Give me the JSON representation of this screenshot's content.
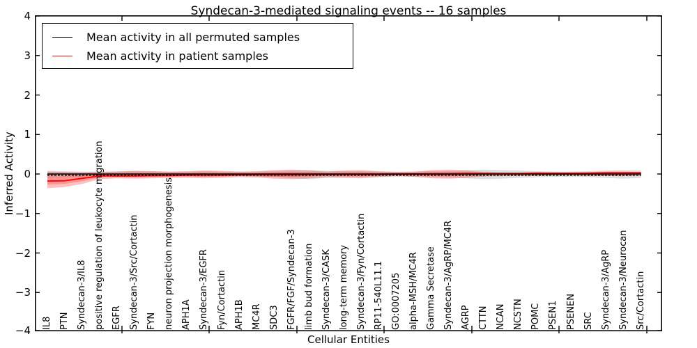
{
  "title": "Syndecan-3-mediated signaling events -- 16 samples",
  "legend": {
    "permuted_label": "Mean activity in all permuted samples",
    "patient_label": "Mean activity in patient samples"
  },
  "axes": {
    "x_label": "Cellular Entities",
    "y_label": "Inferred Activity",
    "y_tick_values": [
      4,
      3,
      2,
      1,
      0,
      -1,
      -2,
      -3,
      -4
    ],
    "y_tick_labels": [
      "4",
      "3",
      "2",
      "1",
      "0",
      "−1",
      "−2",
      "−3",
      "−4"
    ],
    "ylim": [
      -4,
      4
    ]
  },
  "colors": {
    "permuted_line": "#000000",
    "patient_line": "#ff0000",
    "permuted_band": "rgba(0,0,0,0.13)",
    "permuted_band_inner": "rgba(0,0,0,0.08)",
    "patient_band": "rgba(255,0,0,0.25)",
    "patient_band_inner": "rgba(255,0,0,0.22)",
    "axis": "#000000"
  },
  "chart_data": {
    "type": "line",
    "title": "Syndecan-3-mediated signaling events -- 16 samples",
    "xlabel": "Cellular Entities",
    "ylabel": "Inferred Activity",
    "ylim": [
      -4,
      4
    ],
    "grid": false,
    "legend_position": "upper left",
    "categories": [
      "IL8",
      "PTN",
      "Syndecan-3/IL8",
      "positive regulation of leukocyte migration",
      "EGFR",
      "Syndecan-3/Src/Cortactin",
      "FYN",
      "neuron projection morphogenesis",
      "APH1A",
      "Syndecan-3/EGFR",
      "Fyn/Cortactin",
      "APH1B",
      "MC4R",
      "SDC3",
      "FGFR/FGF/Syndecan-3",
      "limb bud formation",
      "Syndecan-3/CASK",
      "long-term memory",
      "Syndecan-3/Fyn/Cortactin",
      "RP11-540L11.1",
      "GO:0007205",
      "alpha-MSH/MC4R",
      "Gamma Secretase",
      "Syndecan-3/AgRP/MC4R",
      "AGRP",
      "CTTN",
      "NCAN",
      "NCSTN",
      "POMC",
      "PSEN1",
      "PSENEN",
      "SRC",
      "Syndecan-3/AgRP",
      "Syndecan-3/Neurocan",
      "Src/Cortactin"
    ],
    "series": [
      {
        "name": "Mean activity in all permuted samples",
        "color": "#000000",
        "style": "solid-with-dashed-overlay",
        "values": [
          0,
          0,
          0,
          0,
          0,
          0,
          0,
          0,
          0,
          0,
          0,
          0,
          0,
          0,
          0,
          0,
          0,
          0,
          0,
          0,
          0,
          0,
          0,
          0,
          0,
          0,
          0,
          0,
          0,
          0,
          0,
          0,
          0,
          0,
          0
        ],
        "band_upper": [
          0.08,
          0.07,
          0.06,
          0.06,
          0.07,
          0.08,
          0.07,
          0.06,
          0.06,
          0.07,
          0.06,
          0.06,
          0.06,
          0.07,
          0.09,
          0.1,
          0.08,
          0.07,
          0.07,
          0.06,
          0.06,
          0.06,
          0.07,
          0.08,
          0.1,
          0.11,
          0.1,
          0.09,
          0.07,
          0.06,
          0.06,
          0.07,
          0.09,
          0.1,
          0.09
        ],
        "band_lower": [
          -0.09,
          -0.08,
          -0.07,
          -0.06,
          -0.07,
          -0.08,
          -0.07,
          -0.06,
          -0.06,
          -0.07,
          -0.06,
          -0.06,
          -0.07,
          -0.08,
          -0.11,
          -0.13,
          -0.1,
          -0.08,
          -0.08,
          -0.07,
          -0.06,
          -0.07,
          -0.08,
          -0.09,
          -0.11,
          -0.13,
          -0.12,
          -0.1,
          -0.08,
          -0.07,
          -0.07,
          -0.08,
          -0.1,
          -0.12,
          -0.1
        ]
      },
      {
        "name": "Mean activity in patient samples",
        "color": "#ff0000",
        "style": "solid",
        "values": [
          -0.18,
          -0.17,
          -0.11,
          -0.05,
          -0.05,
          -0.05,
          -0.04,
          -0.04,
          -0.03,
          -0.03,
          -0.03,
          -0.02,
          -0.02,
          -0.02,
          -0.02,
          -0.01,
          -0.01,
          -0.01,
          -0.01,
          -0.01,
          0,
          0,
          0,
          0,
          0.01,
          0.01,
          0.01,
          0.01,
          0.02,
          0.02,
          0.02,
          0.02,
          0.03,
          0.03,
          0.03
        ],
        "band_upper": [
          0.06,
          0.05,
          0.04,
          0.05,
          0.06,
          0.08,
          0.07,
          0.06,
          0.07,
          0.09,
          0.08,
          0.06,
          0.07,
          0.1,
          0.11,
          0.09,
          0.06,
          0.09,
          0.1,
          0.07,
          0.05,
          0.06,
          0.1,
          0.11,
          0.09,
          0.05,
          0.04,
          0.04,
          0.05,
          0.04,
          0.04,
          0.05,
          0.06,
          0.06,
          0.05
        ],
        "band_lower": [
          -0.36,
          -0.33,
          -0.25,
          -0.13,
          -0.11,
          -0.12,
          -0.11,
          -0.1,
          -0.1,
          -0.11,
          -0.1,
          -0.08,
          -0.09,
          -0.12,
          -0.13,
          -0.11,
          -0.08,
          -0.1,
          -0.11,
          -0.08,
          -0.06,
          -0.07,
          -0.11,
          -0.12,
          -0.1,
          -0.06,
          -0.05,
          -0.05,
          -0.05,
          -0.04,
          -0.04,
          -0.05,
          -0.05,
          -0.05,
          -0.04
        ]
      }
    ]
  }
}
